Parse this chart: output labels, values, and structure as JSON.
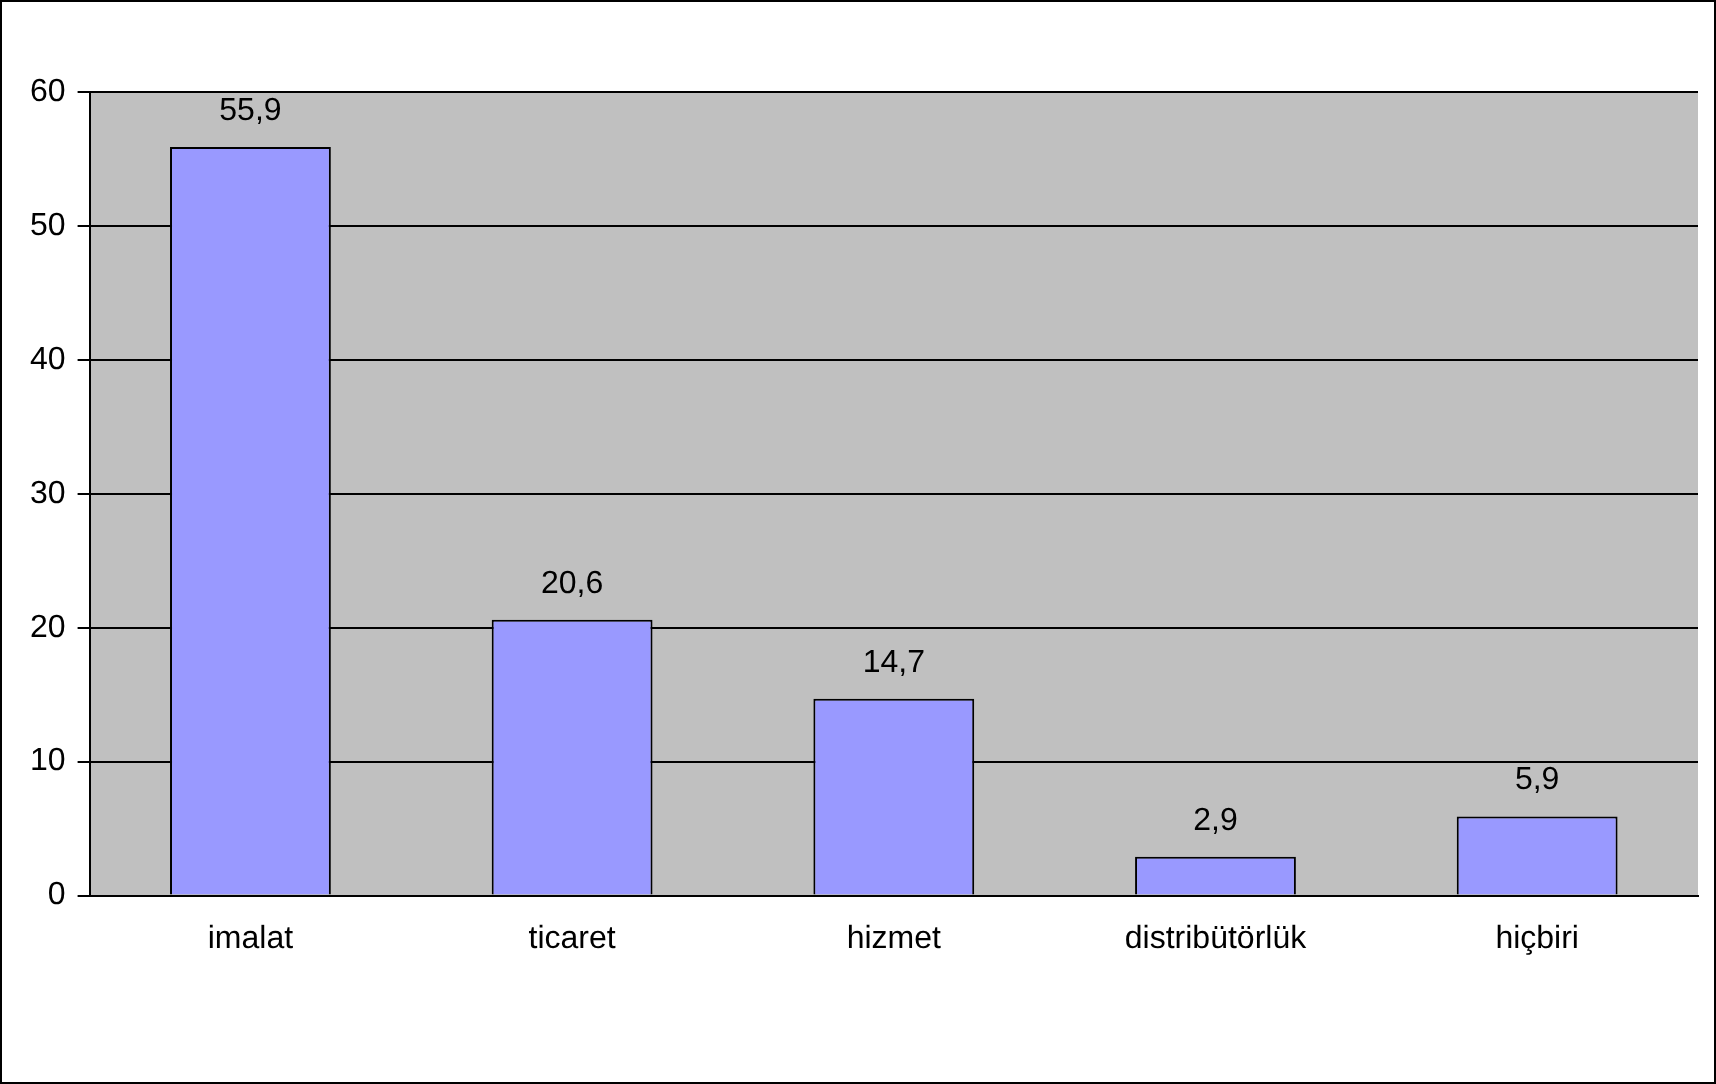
{
  "chart_data": {
    "type": "bar",
    "categories": [
      "imalat",
      "ticaret",
      "hizmet",
      "distribütörlük",
      "hiçbiri"
    ],
    "values": [
      55.9,
      20.6,
      14.7,
      2.9,
      5.9
    ],
    "value_labels": [
      "55,9",
      "20,6",
      "14,7",
      "2,9",
      "5,9"
    ],
    "color": "#9999ff",
    "ylim": [
      0,
      60
    ],
    "yticks": [
      0,
      10,
      20,
      30,
      40,
      50,
      60
    ],
    "grid": "y",
    "legend": false
  }
}
